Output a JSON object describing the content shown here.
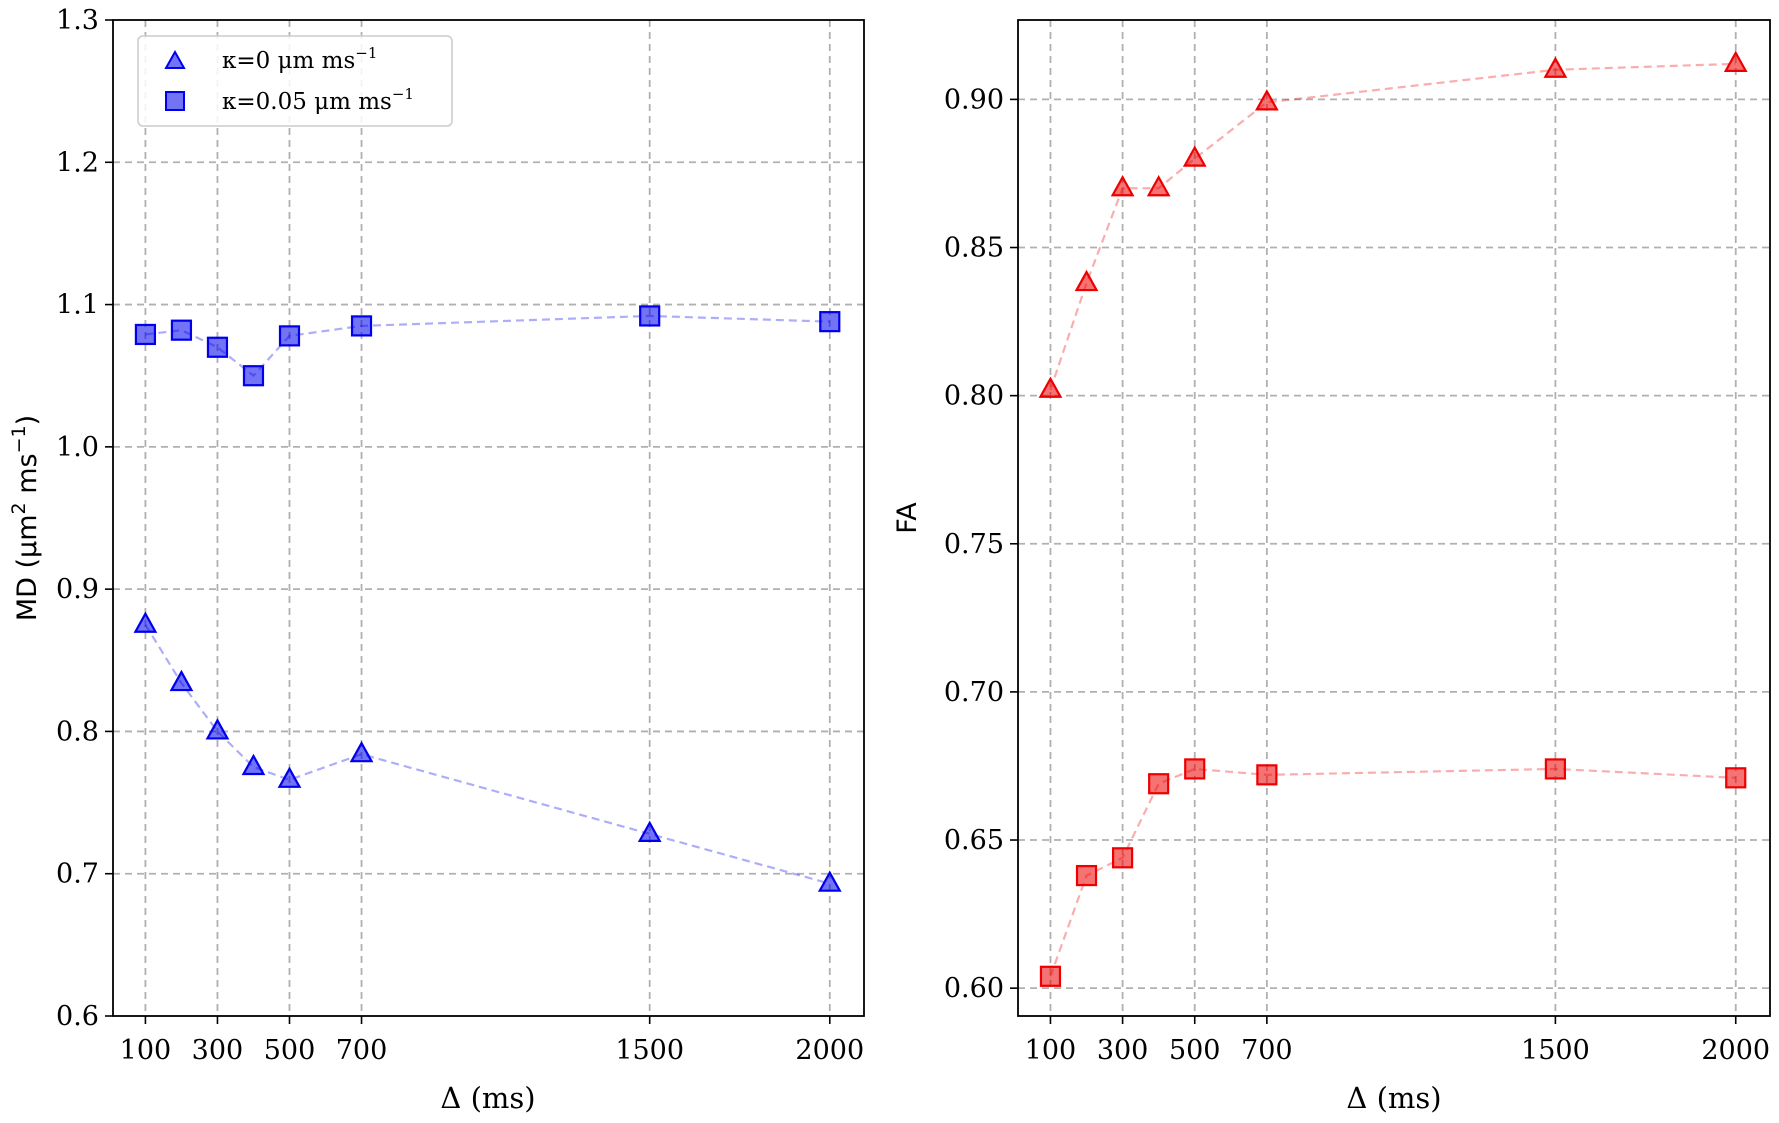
{
  "chart_data": [
    {
      "type": "line",
      "panel": "left",
      "xlabel": "Δ (ms)",
      "ylabel": "MD (μm² ms⁻¹)",
      "ylabel_parts": {
        "prefix": "MD (μm",
        "sup1": "2",
        "mid": " ms",
        "sup2": "−1",
        "suffix": ")"
      },
      "xlim": [
        10,
        2095
      ],
      "ylim": [
        0.6,
        1.3
      ],
      "xticks": [
        100,
        300,
        500,
        700,
        1500,
        2000
      ],
      "yticks": [
        0.6,
        0.7,
        0.8,
        0.9,
        1.0,
        1.1,
        1.2,
        1.3
      ],
      "ytick_labels": [
        "0.6",
        "0.7",
        "0.8",
        "0.9",
        "1.0",
        "1.1",
        "1.2",
        "1.3"
      ],
      "grid": true,
      "color": "#0000ee",
      "legend": {
        "position": "top-left",
        "entries": [
          {
            "marker": "triangle",
            "prefix": "κ=0 μm ms",
            "sup": "−1"
          },
          {
            "marker": "square",
            "prefix": "κ=0.05 μm ms",
            "sup": "−1"
          }
        ]
      },
      "series": [
        {
          "name": "κ=0 μm ms−1",
          "marker": "triangle",
          "x": [
            100,
            200,
            300,
            400,
            500,
            700,
            1500,
            2000
          ],
          "y": [
            0.875,
            0.834,
            0.8,
            0.775,
            0.766,
            0.784,
            0.728,
            0.693
          ]
        },
        {
          "name": "κ=0.05 μm ms−1",
          "marker": "square",
          "x": [
            100,
            200,
            300,
            400,
            500,
            700,
            1500,
            2000
          ],
          "y": [
            1.079,
            1.082,
            1.07,
            1.05,
            1.078,
            1.085,
            1.092,
            1.088
          ]
        }
      ]
    },
    {
      "type": "line",
      "panel": "right",
      "xlabel": "Δ (ms)",
      "ylabel": "FA",
      "xlim": [
        10,
        2095
      ],
      "ylim": [
        0.5906,
        0.9268
      ],
      "xticks": [
        100,
        300,
        500,
        700,
        1500,
        2000
      ],
      "yticks": [
        0.6,
        0.65,
        0.7,
        0.75,
        0.8,
        0.85,
        0.9
      ],
      "ytick_labels": [
        "0.60",
        "0.65",
        "0.70",
        "0.75",
        "0.80",
        "0.85",
        "0.90"
      ],
      "grid": true,
      "color": "#ee0000",
      "series": [
        {
          "name": "κ=0 μm ms−1",
          "marker": "triangle",
          "x": [
            100,
            200,
            300,
            400,
            500,
            700,
            1500,
            2000
          ],
          "y": [
            0.802,
            0.838,
            0.87,
            0.87,
            0.88,
            0.899,
            0.91,
            0.912
          ]
        },
        {
          "name": "κ=0.05 μm ms−1",
          "marker": "square",
          "x": [
            100,
            200,
            300,
            400,
            500,
            700,
            1500,
            2000
          ],
          "y": [
            0.604,
            0.638,
            0.644,
            0.669,
            0.674,
            0.672,
            0.674,
            0.671
          ]
        }
      ]
    }
  ]
}
